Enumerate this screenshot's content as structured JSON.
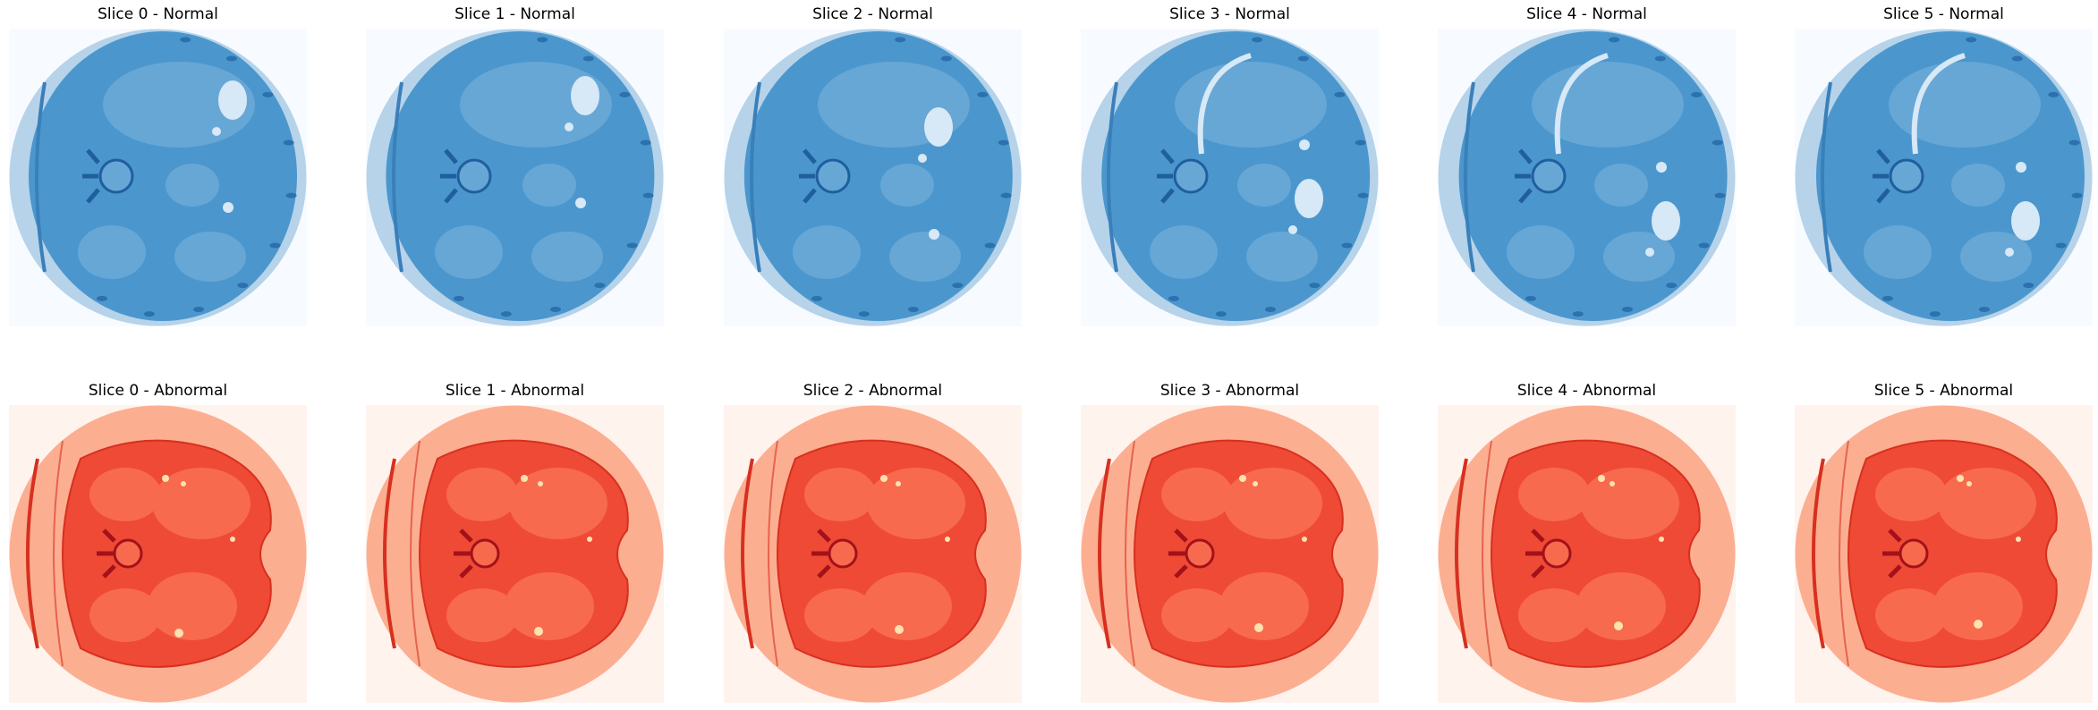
{
  "figure": {
    "rows": [
      {
        "group": "normal",
        "palette": {
          "background": "#f7fbff",
          "outer": "#b6d3ea",
          "body": "#4b97cd",
          "organ": "#66a7d6",
          "dark": "#1f5f9f",
          "bright": "#d7e8f6",
          "line": "#3a7fba"
        },
        "panels": [
          {
            "title": "Slice 0 - Normal"
          },
          {
            "title": "Slice 1 - Normal"
          },
          {
            "title": "Slice 2 - Normal"
          },
          {
            "title": "Slice 3 - Normal"
          },
          {
            "title": "Slice 4 - Normal"
          },
          {
            "title": "Slice 5 - Normal"
          }
        ]
      },
      {
        "group": "abnormal",
        "palette": {
          "background": "#fff3ee",
          "outer": "#fcae91",
          "body": "#ef4a35",
          "organ": "#f86a4d",
          "dark": "#a3121a",
          "bright": "#fde2b0",
          "line": "#d7301f"
        },
        "panels": [
          {
            "title": "Slice 0 - Abnormal"
          },
          {
            "title": "Slice 1 - Abnormal"
          },
          {
            "title": "Slice 2 - Abnormal"
          },
          {
            "title": "Slice 3 - Abnormal"
          },
          {
            "title": "Slice 4 - Abnormal"
          },
          {
            "title": "Slice 5 - Abnormal"
          }
        ]
      }
    ]
  }
}
